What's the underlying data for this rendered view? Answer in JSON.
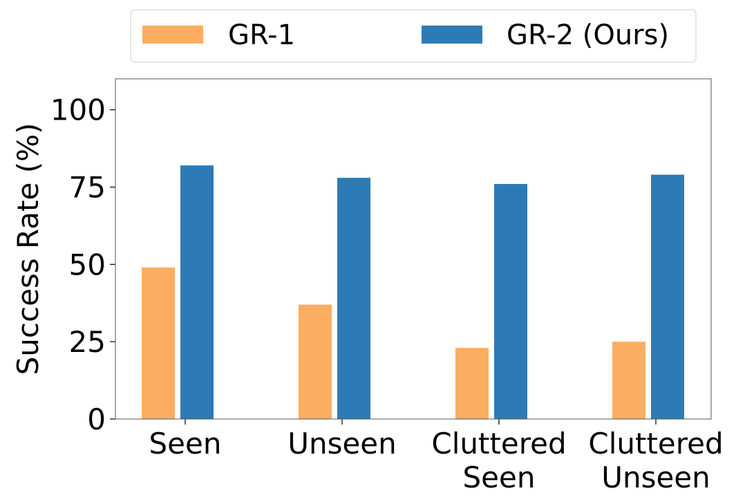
{
  "chart_data": {
    "type": "bar",
    "title": "",
    "xlabel": "",
    "ylabel": "Success Rate (%)",
    "ylim": [
      0,
      110
    ],
    "yticks": [
      0,
      25,
      50,
      75,
      100
    ],
    "grid": false,
    "legend_position": "top",
    "categories": [
      [
        "Seen"
      ],
      [
        "Unseen"
      ],
      [
        "Cluttered",
        "Seen"
      ],
      [
        "Cluttered",
        "Unseen"
      ]
    ],
    "series": [
      {
        "name": "GR-1",
        "color": "#fbad62",
        "values": [
          49,
          37,
          23,
          25
        ]
      },
      {
        "name": "GR-2 (Ours)",
        "color": "#2d7bb6",
        "values": [
          82,
          78,
          76,
          79
        ]
      }
    ]
  }
}
